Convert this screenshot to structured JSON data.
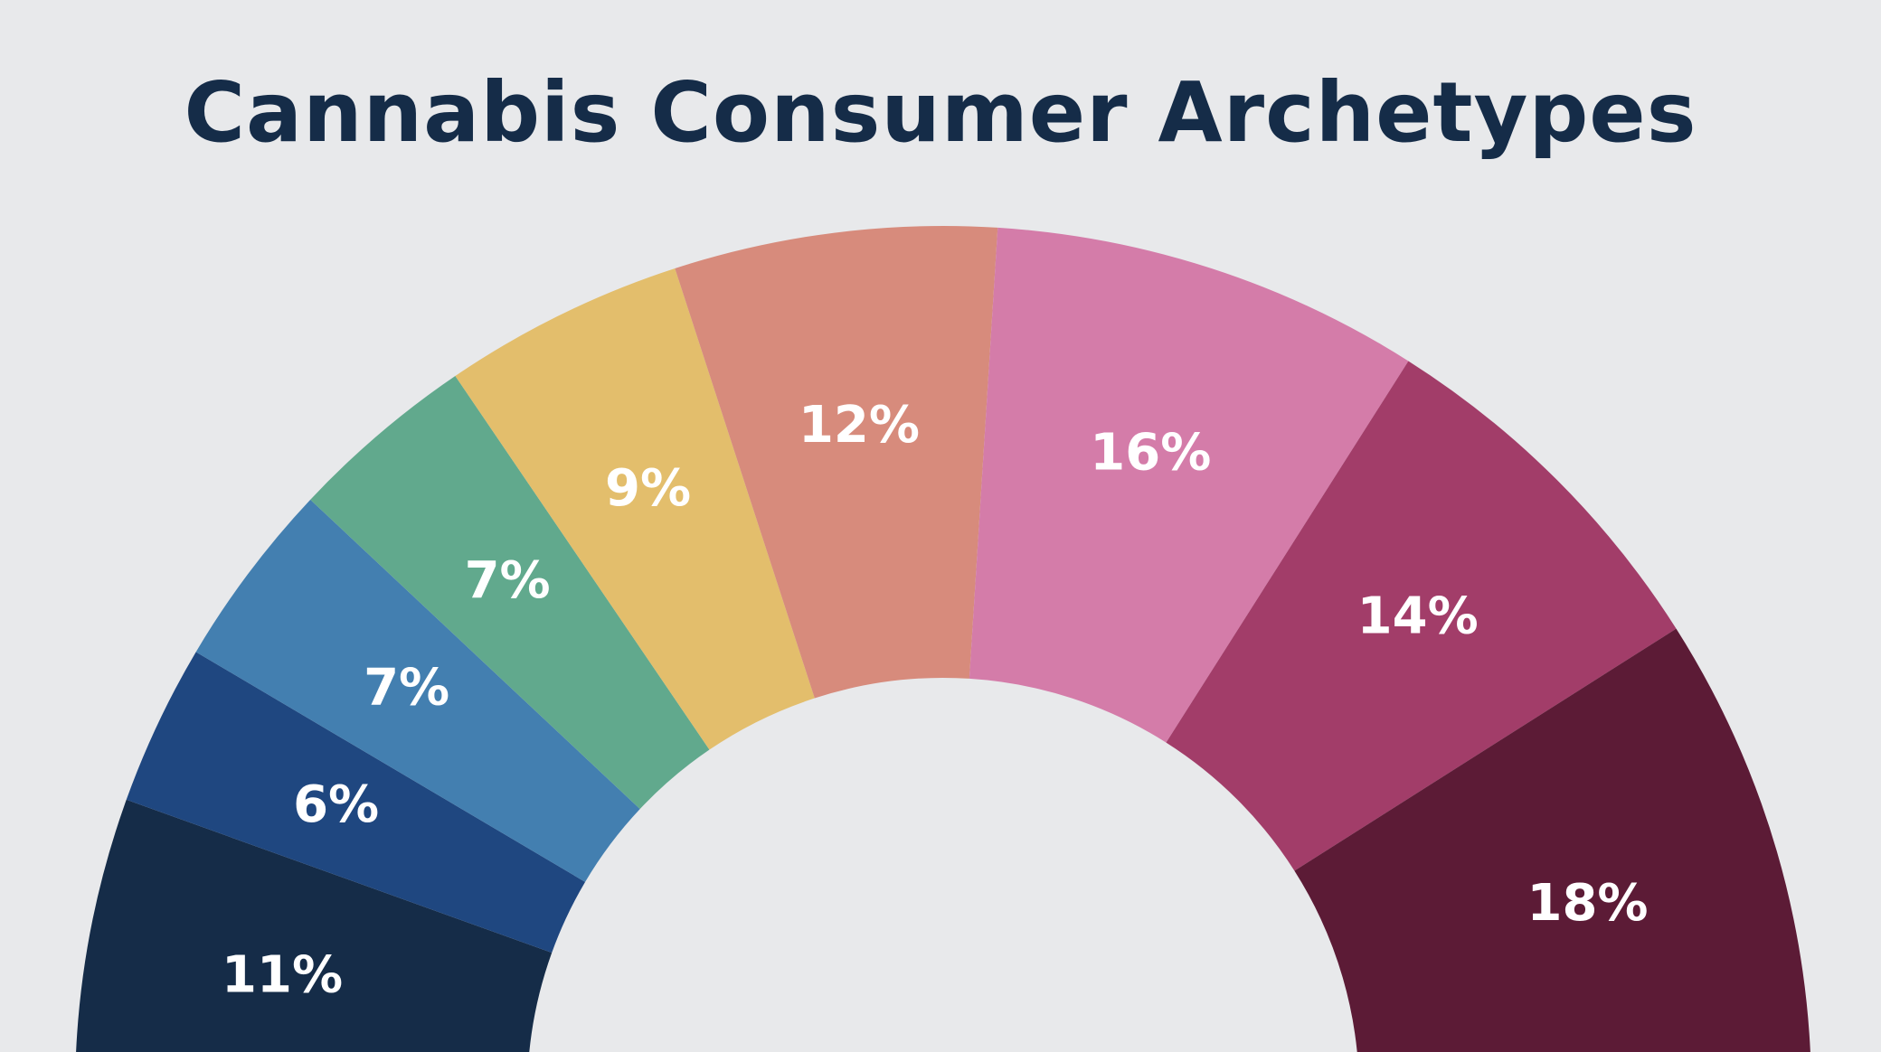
{
  "chart_data": {
    "type": "pie",
    "title": "Cannabis Consumer Archetypes",
    "slices": [
      {
        "value": 11,
        "label": "11%",
        "color": "#152c48"
      },
      {
        "value": 6,
        "label": "6%",
        "color": "#1f4780"
      },
      {
        "value": 7,
        "label": "7%",
        "color": "#437fb0"
      },
      {
        "value": 7,
        "label": "7%",
        "color": "#61a98d"
      },
      {
        "value": 9,
        "label": "9%",
        "color": "#e3be6c"
      },
      {
        "value": 12,
        "label": "12%",
        "color": "#d78b7c"
      },
      {
        "value": 16,
        "label": "16%",
        "color": "#d47ca9"
      },
      {
        "value": 14,
        "label": "14%",
        "color": "#a23d69"
      },
      {
        "value": 18,
        "label": "18%",
        "color": "#5c1b36"
      }
    ],
    "background": "#e8e9eb",
    "title_color": "#152c48"
  }
}
